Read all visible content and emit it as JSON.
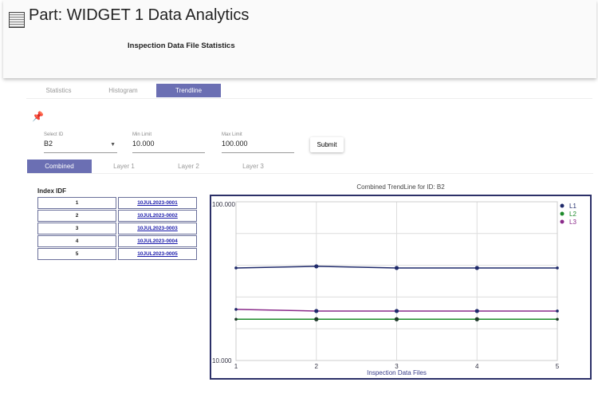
{
  "header": {
    "title": "Part: WIDGET 1 Data Analytics",
    "subtitle": "Inspection Data File Statistics",
    "logo": "chart-logo-icon"
  },
  "tabs": [
    {
      "label": "Statistics"
    },
    {
      "label": "Histogram"
    },
    {
      "label": "Trendline",
      "active": true
    }
  ],
  "pin_icon": "pushpin-icon",
  "form": {
    "select_id": {
      "label": "Select ID",
      "value": "B2"
    },
    "min_limit": {
      "label": "Min Limit",
      "value": "10.000"
    },
    "max_limit": {
      "label": "Max Limit",
      "value": "100.000"
    },
    "submit": "Submit"
  },
  "subtabs": [
    {
      "label": "Combined",
      "active": true
    },
    {
      "label": "Layer 1"
    },
    {
      "label": "Layer 2"
    },
    {
      "label": "Layer 3"
    }
  ],
  "index_table": {
    "title": "Index IDF",
    "rows": [
      [
        "1",
        "10JUL2023-0001"
      ],
      [
        "2",
        "10JUL2023-0002"
      ],
      [
        "3",
        "10JUL2023-0003"
      ],
      [
        "4",
        "10JUL2023-0004"
      ],
      [
        "5",
        "10JUL2023-0005"
      ]
    ]
  },
  "accent": "#6b6fb3",
  "chart_data": {
    "type": "line",
    "title": "Combined TrendLine for ID: B2",
    "xlabel": "Inspection Data Files",
    "ylabel": "",
    "x": [
      1,
      2,
      3,
      4,
      5
    ],
    "yscale": "log",
    "ylim": [
      10,
      100
    ],
    "ytick_labels": [
      "100.000",
      "10.000"
    ],
    "grid": true,
    "legend": "top-right",
    "series": [
      {
        "name": "L1",
        "color": "#1f2a6b",
        "values": [
          38.3,
          39.2,
          38.3,
          38.3,
          38.3
        ]
      },
      {
        "name": "L2",
        "color": "#1d8a2a",
        "values": [
          18.2,
          18.2,
          18.2,
          18.2,
          18.2
        ]
      },
      {
        "name": "L3",
        "color": "#8a2a8a",
        "values": [
          21.0,
          20.5,
          20.5,
          20.5,
          20.5
        ]
      }
    ]
  }
}
